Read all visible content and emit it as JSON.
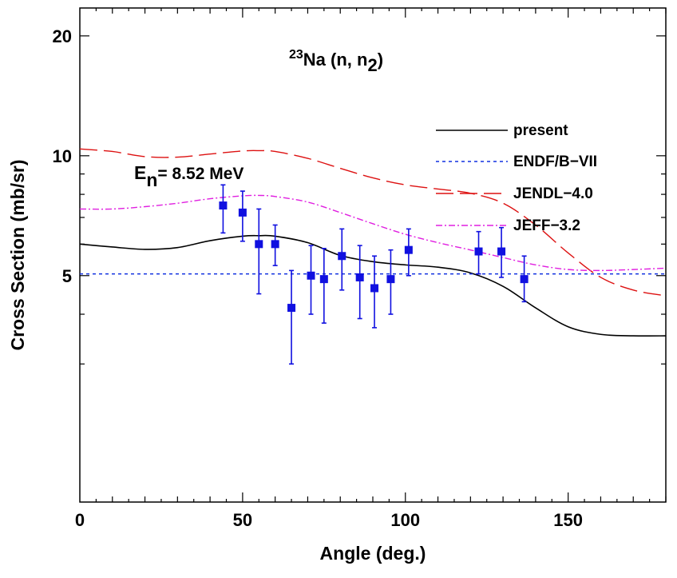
{
  "chart_data": {
    "type": "scatter",
    "title_parts": {
      "mass": "23",
      "element": "Na",
      "reaction_a": " (n, n",
      "reaction_sub": "2",
      "reaction_b": ")"
    },
    "energy_parts": {
      "symbol": "E",
      "sub": "n",
      "rest": "= 8.52 MeV"
    },
    "xlabel": "Angle (deg.)",
    "ylabel": "Cross Section (mb/sr)",
    "xlim": [
      0,
      180
    ],
    "ylim": [
      1.35,
      23.5
    ],
    "yscale": "log",
    "x_ticks": [
      0,
      50,
      100,
      150
    ],
    "x_tick_labels": [
      "0",
      "50",
      "100",
      "150"
    ],
    "y_ticks": [
      5,
      10,
      20
    ],
    "y_tick_labels": [
      "5",
      "10",
      "20"
    ],
    "y_minor_ticks": [
      3,
      4,
      6,
      7,
      8,
      9
    ],
    "legend": {
      "position": "top-right",
      "entries": [
        "present",
        "ENDF/B−VII",
        "JENDL−4.0",
        "JEFF−3.2"
      ]
    },
    "series": [
      {
        "name": "present",
        "color": "#000000",
        "style": "solid",
        "x": [
          0,
          10,
          20,
          30,
          40,
          50,
          55,
          60,
          70,
          80,
          90,
          100,
          110,
          120,
          130,
          140,
          150,
          160,
          170,
          180
        ],
        "values": [
          6.0,
          5.9,
          5.82,
          5.88,
          6.12,
          6.28,
          6.3,
          6.28,
          6.05,
          5.62,
          5.42,
          5.32,
          5.25,
          5.08,
          4.7,
          4.15,
          3.72,
          3.56,
          3.53,
          3.53
        ]
      },
      {
        "name": "ENDF/B−VII",
        "color": "#1030e0",
        "style": "dashed",
        "x": [
          0,
          180
        ],
        "values": [
          5.05,
          5.05
        ]
      },
      {
        "name": "JENDL−4.0",
        "color": "#dd1111",
        "style": "longdash",
        "x": [
          0,
          10,
          20,
          30,
          40,
          50,
          55,
          60,
          70,
          80,
          90,
          100,
          110,
          120,
          130,
          140,
          150,
          160,
          170,
          180
        ],
        "values": [
          10.4,
          10.25,
          9.95,
          9.92,
          10.1,
          10.28,
          10.3,
          10.25,
          9.85,
          9.3,
          8.8,
          8.45,
          8.25,
          8.05,
          7.6,
          6.7,
          5.7,
          4.95,
          4.6,
          4.45
        ]
      },
      {
        "name": "JEFF−3.2",
        "color": "#e020e0",
        "style": "dashdot",
        "x": [
          0,
          10,
          20,
          30,
          40,
          50,
          55,
          60,
          70,
          80,
          90,
          100,
          110,
          120,
          130,
          140,
          150,
          160,
          170,
          180
        ],
        "values": [
          7.35,
          7.35,
          7.45,
          7.6,
          7.8,
          7.93,
          7.95,
          7.9,
          7.65,
          7.2,
          6.75,
          6.35,
          6.05,
          5.8,
          5.55,
          5.32,
          5.18,
          5.15,
          5.18,
          5.22
        ]
      }
    ],
    "data_points": {
      "name": "measured",
      "color": "#1010e0",
      "x": [
        44,
        50,
        55,
        60,
        65,
        71,
        75,
        80.5,
        86,
        90.5,
        95.5,
        101,
        122.5,
        129.5,
        136.5
      ],
      "y": [
        7.5,
        7.2,
        6.0,
        6.0,
        4.15,
        5.0,
        4.9,
        5.6,
        4.95,
        4.65,
        4.9,
        5.8,
        5.75,
        5.75,
        4.9
      ],
      "y_low": [
        6.4,
        6.1,
        4.5,
        5.3,
        3.0,
        4.0,
        3.8,
        4.6,
        3.9,
        3.7,
        4.0,
        5.0,
        5.05,
        4.95,
        4.3
      ],
      "y_high": [
        8.45,
        8.15,
        7.35,
        6.7,
        5.15,
        5.95,
        5.85,
        6.55,
        5.95,
        5.6,
        5.8,
        6.55,
        6.45,
        6.6,
        5.6
      ]
    }
  }
}
